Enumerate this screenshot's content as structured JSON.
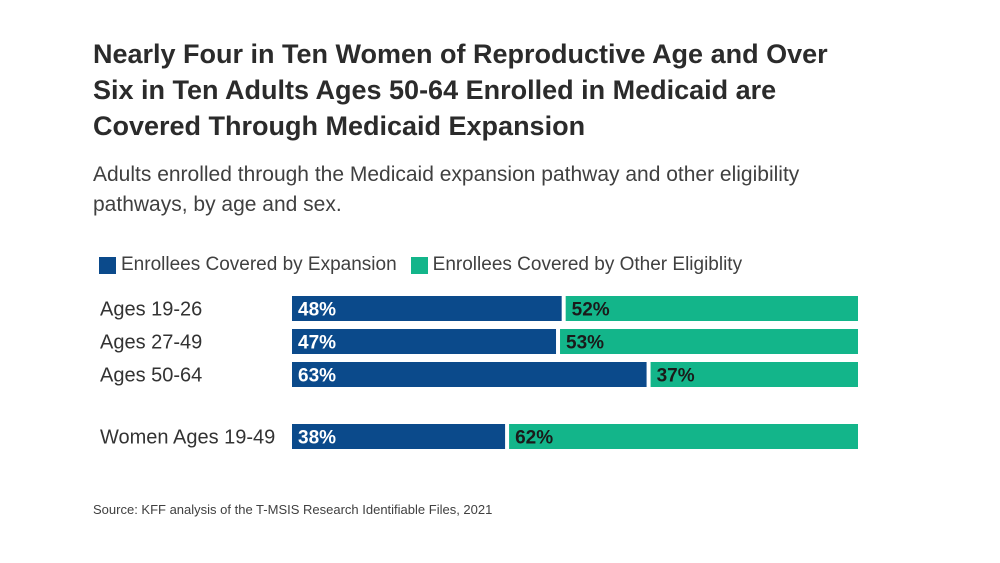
{
  "title": "Nearly Four in Ten Women of Reproductive Age and Over Six in Ten Adults Ages 50-64 Enrolled in Medicaid are Covered Through Medicaid Expansion",
  "subtitle": "Adults enrolled through the Medicaid expansion pathway and other eligibility pathways, by age and sex.",
  "source": "Source: KFF analysis of the T-MSIS Research Identifiable Files, 2021",
  "colors": {
    "expansion": "#0b4a8b",
    "other": "#13b58a",
    "expansion_label": "#ffffff",
    "other_label": "#1a1a1a"
  },
  "chart_data": {
    "type": "bar",
    "orientation": "horizontal",
    "stacked": true,
    "percent_stacked": true,
    "categories": [
      "Ages 19-26",
      "Ages 27-49",
      "Ages 50-64",
      "Women Ages 19-49"
    ],
    "series": [
      {
        "name": "Enrollees Covered by Expansion",
        "values": [
          48,
          47,
          63,
          38
        ],
        "labels": [
          "48%",
          "47%",
          "63%",
          "38%"
        ]
      },
      {
        "name": "Enrollees Covered by Other Eligiblity",
        "values": [
          52,
          53,
          37,
          62
        ],
        "labels": [
          "52%",
          "53%",
          "37%",
          "62%"
        ]
      }
    ],
    "xlim": [
      0,
      100
    ],
    "grid": false,
    "legend_position": "top-left"
  }
}
